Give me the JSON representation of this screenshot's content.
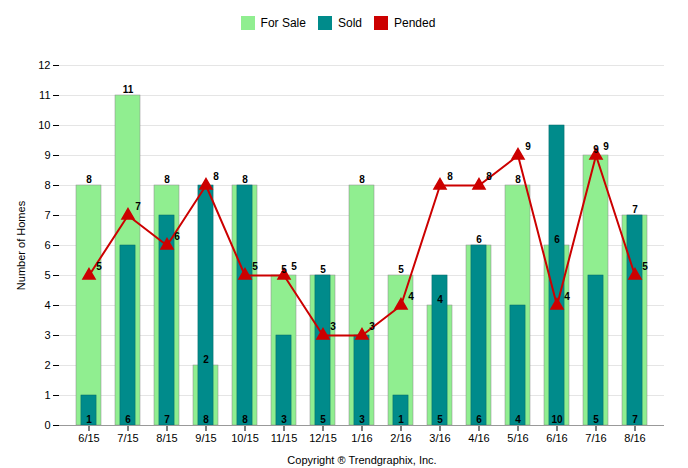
{
  "chart_data": {
    "type": "bar",
    "categories": [
      "6/15",
      "7/15",
      "8/15",
      "9/15",
      "10/15",
      "11/15",
      "12/15",
      "1/16",
      "2/16",
      "3/16",
      "4/16",
      "5/16",
      "6/16",
      "7/16",
      "8/16"
    ],
    "series": [
      {
        "name": "For Sale",
        "type": "bar",
        "color": "#90EE90",
        "values": [
          8,
          11,
          8,
          2,
          8,
          5,
          5,
          8,
          5,
          4,
          6,
          8,
          6,
          9,
          7
        ]
      },
      {
        "name": "Sold",
        "type": "bar",
        "color": "#008B8B",
        "values": [
          1,
          6,
          7,
          8,
          8,
          3,
          5,
          3,
          1,
          5,
          6,
          4,
          10,
          5,
          7
        ]
      },
      {
        "name": "Pended",
        "type": "line",
        "color": "#CC0000",
        "marker": "triangle",
        "values": [
          5,
          7,
          6,
          8,
          5,
          5,
          3,
          3,
          4,
          8,
          8,
          9,
          4,
          9,
          5
        ]
      }
    ],
    "ylabel": "Number of Homes",
    "xlabel": "Copyright ® Trendgraphix, Inc.",
    "ylim": [
      0,
      12
    ],
    "yticks": [
      0,
      1,
      2,
      3,
      4,
      5,
      6,
      7,
      8,
      9,
      10,
      11,
      12
    ],
    "grid": true,
    "data_labels": true,
    "legend": "top"
  }
}
